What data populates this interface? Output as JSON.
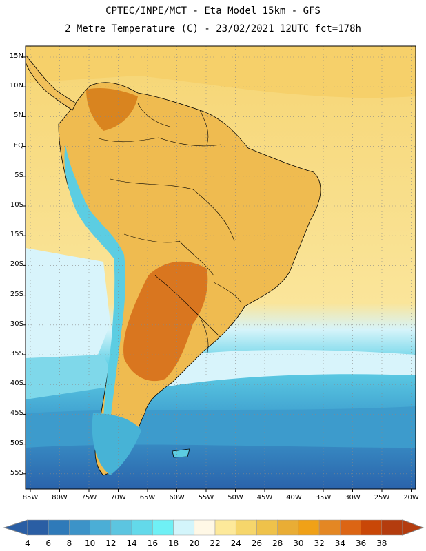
{
  "header": {
    "line1": "CPTEC/INPE/MCT -  Eta Model 15km - GFS",
    "line2": "2 Metre Temperature (C) - 23/02/2021 12UTC fct=178h"
  },
  "map": {
    "lat_labels": [
      "15N",
      "10N",
      "5N",
      "EQ",
      "5S",
      "10S",
      "15S",
      "20S",
      "25S",
      "30S",
      "35S",
      "40S",
      "45S",
      "50S",
      "55S"
    ],
    "lon_labels": [
      "85W",
      "80W",
      "75W",
      "70W",
      "65W",
      "60W",
      "55W",
      "50W",
      "45W",
      "40W",
      "35W",
      "30W",
      "25W",
      "20W"
    ]
  },
  "colorbar": {
    "labels": [
      "4",
      "6",
      "8",
      "10",
      "12",
      "14",
      "16",
      "18",
      "20",
      "22",
      "24",
      "26",
      "28",
      "30",
      "32",
      "34",
      "36",
      "38"
    ],
    "colors": [
      "#2a5ea4",
      "#2f7ab9",
      "#3c93c8",
      "#4baed6",
      "#5cc5e0",
      "#63d9ea",
      "#6ff0f5",
      "#d3f5fb",
      "#fff8e6",
      "#fde99a",
      "#f6d66b",
      "#efc24a",
      "#e9ad35",
      "#f0a117",
      "#e48723",
      "#dc6514",
      "#c94707",
      "#b43c0e"
    ]
  },
  "colors": {
    "ocean_warm": "#f7d36f",
    "land_hot": "#d9751e",
    "ocean_cool": "#53c4dc",
    "ocean_cold": "#2f73b4"
  }
}
